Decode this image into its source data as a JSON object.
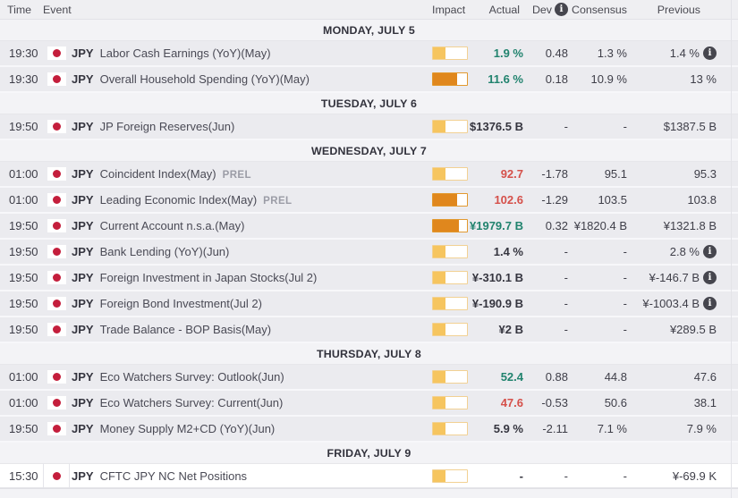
{
  "table": {
    "headers": {
      "time": "Time",
      "event": "Event",
      "impact": "Impact",
      "actual": "Actual",
      "dev": "Dev",
      "consensus": "Consensus",
      "previous": "Previous"
    },
    "info_icon_glyph": "i"
  },
  "colors": {
    "actual_green": "#21836E",
    "actual_red": "#D5504A",
    "text_dark": "#35353F",
    "impact_low_fill": "#F6C55F",
    "impact_low_border": "#F2D193",
    "impact_medium_fill": "#E0871D",
    "impact_medium_border": "#E2992F",
    "flag_red": "#C41E3C",
    "info_icon_bg": "#46464E"
  },
  "days": [
    {
      "label": "MONDAY, JULY 5",
      "events": [
        {
          "time": "19:30",
          "currency": "JPY",
          "name": "Labor Cash Earnings (YoY)(May)",
          "impact": "low",
          "impact_fill": 0.36,
          "actual": "1.9 %",
          "actual_color": "green",
          "dev": "0.48",
          "consensus": "1.3 %",
          "previous": "1.4 %",
          "previous_info": true
        },
        {
          "time": "19:30",
          "currency": "JPY",
          "name": "Overall Household Spending (YoY)(May)",
          "impact": "medium",
          "impact_fill": 0.72,
          "actual": "11.6 %",
          "actual_color": "green",
          "dev": "0.18",
          "consensus": "10.9 %",
          "previous": "13 %",
          "previous_info": false
        }
      ]
    },
    {
      "label": "TUESDAY, JULY 6",
      "events": [
        {
          "time": "19:50",
          "currency": "JPY",
          "name": "JP Foreign Reserves(Jun)",
          "impact": "low",
          "impact_fill": 0.36,
          "actual": "$1376.5 B",
          "actual_color": "neutral",
          "dev": "-",
          "consensus": "-",
          "previous": "$1387.5 B",
          "previous_info": false
        }
      ]
    },
    {
      "label": "WEDNESDAY, JULY 7",
      "events": [
        {
          "time": "01:00",
          "currency": "JPY",
          "name": "Coincident Index(May)",
          "prel": "PREL",
          "impact": "low",
          "impact_fill": 0.36,
          "actual": "92.7",
          "actual_color": "red",
          "dev": "-1.78",
          "consensus": "95.1",
          "previous": "95.3",
          "previous_info": false
        },
        {
          "time": "01:00",
          "currency": "JPY",
          "name": "Leading Economic Index(May)",
          "prel": "PREL",
          "impact": "medium",
          "impact_fill": 0.72,
          "actual": "102.6",
          "actual_color": "red",
          "dev": "-1.29",
          "consensus": "103.5",
          "previous": "103.8",
          "previous_info": false
        },
        {
          "time": "19:50",
          "currency": "JPY",
          "name": "Current Account n.s.a.(May)",
          "impact": "medium",
          "impact_fill": 0.75,
          "actual": "¥1979.7 B",
          "actual_color": "green",
          "dev": "0.32",
          "consensus": "¥1820.4 B",
          "previous": "¥1321.8 B",
          "previous_info": false
        },
        {
          "time": "19:50",
          "currency": "JPY",
          "name": "Bank Lending (YoY)(Jun)",
          "impact": "low",
          "impact_fill": 0.36,
          "actual": "1.4 %",
          "actual_color": "neutral",
          "dev": "-",
          "consensus": "-",
          "previous": "2.8 %",
          "previous_info": true
        },
        {
          "time": "19:50",
          "currency": "JPY",
          "name": "Foreign Investment in Japan Stocks(Jul 2)",
          "impact": "low",
          "impact_fill": 0.36,
          "actual": "¥-310.1 B",
          "actual_color": "neutral",
          "dev": "-",
          "consensus": "-",
          "previous": "¥-146.7 B",
          "previous_info": true
        },
        {
          "time": "19:50",
          "currency": "JPY",
          "name": "Foreign Bond Investment(Jul 2)",
          "impact": "low",
          "impact_fill": 0.36,
          "actual": "¥-190.9 B",
          "actual_color": "neutral",
          "dev": "-",
          "consensus": "-",
          "previous": "¥-1003.4 B",
          "previous_info": true
        },
        {
          "time": "19:50",
          "currency": "JPY",
          "name": "Trade Balance - BOP Basis(May)",
          "impact": "low",
          "impact_fill": 0.36,
          "actual": "¥2 B",
          "actual_color": "neutral",
          "dev": "-",
          "consensus": "-",
          "previous": "¥289.5 B",
          "previous_info": false
        }
      ]
    },
    {
      "label": "THURSDAY, JULY 8",
      "events": [
        {
          "time": "01:00",
          "currency": "JPY",
          "name": "Eco Watchers Survey: Outlook(Jun)",
          "impact": "low",
          "impact_fill": 0.36,
          "actual": "52.4",
          "actual_color": "green",
          "dev": "0.88",
          "consensus": "44.8",
          "previous": "47.6",
          "previous_info": false
        },
        {
          "time": "01:00",
          "currency": "JPY",
          "name": "Eco Watchers Survey: Current(Jun)",
          "impact": "low",
          "impact_fill": 0.36,
          "actual": "47.6",
          "actual_color": "red",
          "dev": "-0.53",
          "consensus": "50.6",
          "previous": "38.1",
          "previous_info": false
        },
        {
          "time": "19:50",
          "currency": "JPY",
          "name": "Money Supply M2+CD (YoY)(Jun)",
          "impact": "low",
          "impact_fill": 0.36,
          "actual": "5.9 %",
          "actual_color": "neutral",
          "dev": "-2.11",
          "consensus": "7.1 %",
          "previous": "7.9 %",
          "previous_info": false
        }
      ]
    },
    {
      "label": "FRIDAY, JULY 9",
      "events": [
        {
          "time": "15:30",
          "currency": "JPY",
          "name": "CFTC JPY NC Net Positions",
          "impact": "low",
          "impact_fill": 0.36,
          "actual": "-",
          "actual_color": "neutral",
          "dev": "-",
          "consensus": "-",
          "previous": "¥-69.9 K",
          "previous_info": false,
          "highlighted": true
        }
      ]
    }
  ]
}
